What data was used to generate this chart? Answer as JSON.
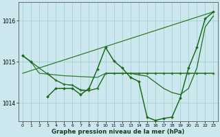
{
  "title": "Graphe pression niveau de la mer (hPa)",
  "bg_color": "#cce8ee",
  "grid_color": "#99cccc",
  "xlim": [
    -0.5,
    23.5
  ],
  "ylim": [
    1013.55,
    1016.45
  ],
  "yticks": [
    1014,
    1015,
    1016
  ],
  "xticks": [
    0,
    1,
    2,
    3,
    4,
    5,
    6,
    7,
    8,
    9,
    10,
    11,
    12,
    13,
    14,
    15,
    16,
    17,
    18,
    19,
    20,
    21,
    22,
    23
  ],
  "line1": {
    "x": [
      0,
      1,
      2,
      3,
      4,
      5,
      6,
      7,
      8,
      9,
      10,
      11,
      12,
      13,
      14,
      15,
      16,
      17,
      18,
      19,
      20,
      21,
      22,
      23
    ],
    "y": [
      1015.15,
      1015.0,
      1014.72,
      1014.7,
      1014.68,
      1014.66,
      1014.65,
      1014.64,
      1014.63,
      1014.62,
      1014.72,
      1014.72,
      1014.72,
      1014.72,
      1014.72,
      1014.72,
      1014.72,
      1014.72,
      1014.72,
      1014.72,
      1014.72,
      1014.72,
      1014.72,
      1014.72
    ],
    "color": "#2d7a2d",
    "lw": 0.9,
    "marker": false
  },
  "line2": {
    "x": [
      0,
      1,
      3,
      4,
      5,
      6,
      7,
      8,
      9,
      10,
      11,
      12,
      13,
      14,
      15,
      16,
      17,
      18,
      19,
      20,
      21,
      22,
      23
    ],
    "y": [
      1015.15,
      1015.0,
      1014.7,
      1014.55,
      1014.45,
      1014.43,
      1014.3,
      1014.3,
      1014.35,
      1014.72,
      1014.72,
      1014.72,
      1014.72,
      1014.68,
      1014.65,
      1014.5,
      1014.35,
      1014.25,
      1014.2,
      1014.35,
      1014.85,
      1015.85,
      1016.12
    ],
    "color": "#1a6b1a",
    "lw": 0.9,
    "marker": false
  },
  "line3_diag": {
    "x": [
      0,
      23
    ],
    "y": [
      1014.72,
      1016.22
    ],
    "color": "#2d7a2d",
    "lw": 0.9,
    "marker": false
  },
  "line4_main": {
    "x": [
      3,
      4,
      5,
      6,
      7,
      8,
      9,
      10,
      11,
      12,
      13,
      14,
      15,
      16,
      17,
      18,
      19,
      20,
      21,
      22,
      23
    ],
    "y": [
      1014.15,
      1014.35,
      1014.35,
      1014.35,
      1014.2,
      1014.35,
      1014.82,
      1015.35,
      1015.02,
      1014.85,
      1014.62,
      1014.52,
      1013.65,
      1013.57,
      1013.62,
      1013.65,
      1014.12,
      1014.85,
      1015.35,
      1016.05,
      1016.22
    ],
    "color": "#1a6b1a",
    "lw": 1.1,
    "marker": true,
    "markersize": 2.0
  },
  "line5_flat": {
    "x": [
      3,
      4,
      5,
      6,
      7,
      8,
      9,
      10,
      11,
      12,
      13,
      14,
      15,
      16,
      17,
      18,
      19,
      20,
      21,
      22,
      23
    ],
    "y": [
      1014.72,
      1014.55,
      1014.45,
      1014.43,
      1014.32,
      1014.3,
      1014.35,
      1014.72,
      1014.72,
      1014.72,
      1014.72,
      1014.72,
      1014.72,
      1014.72,
      1014.72,
      1014.72,
      1014.72,
      1014.72,
      1014.72,
      1014.72,
      1014.72
    ],
    "color": "#2d7a2d",
    "lw": 0.8,
    "marker": true,
    "markersize": 1.8
  },
  "markers_start": {
    "x": [
      0,
      1
    ],
    "y": [
      1015.15,
      1015.0
    ],
    "color": "#1a6b1a",
    "markersize": 2.2
  }
}
